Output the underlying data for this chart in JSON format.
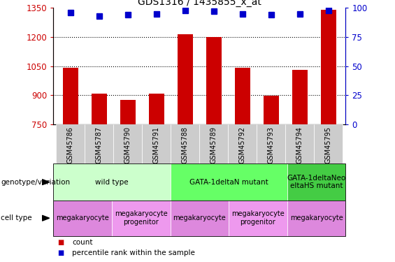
{
  "title": "GDS1316 / 1435855_x_at",
  "samples": [
    "GSM45786",
    "GSM45787",
    "GSM45790",
    "GSM45791",
    "GSM45788",
    "GSM45789",
    "GSM45792",
    "GSM45793",
    "GSM45794",
    "GSM45795"
  ],
  "counts": [
    1040,
    910,
    878,
    908,
    1215,
    1200,
    1040,
    898,
    1030,
    1340
  ],
  "percentiles": [
    96,
    93,
    94,
    95,
    98,
    97,
    95,
    94,
    95,
    98
  ],
  "ylim_left": [
    750,
    1350
  ],
  "ylim_right": [
    0,
    100
  ],
  "yticks_left": [
    750,
    900,
    1050,
    1200,
    1350
  ],
  "yticks_right": [
    0,
    25,
    50,
    75,
    100
  ],
  "bar_color": "#cc0000",
  "dot_color": "#0000cc",
  "plot_bg_color": "#ffffff",
  "grid_color": "#000000",
  "xticklabel_bg": "#cccccc",
  "left_tick_color": "#cc0000",
  "right_tick_color": "#0000cc",
  "genotype_groups": [
    {
      "label": "wild type",
      "start": 0,
      "end": 3,
      "color": "#ccffcc"
    },
    {
      "label": "GATA-1deltaN mutant",
      "start": 4,
      "end": 7,
      "color": "#66ff66"
    },
    {
      "label": "GATA-1deltaNeo\neltaHS mutant",
      "start": 8,
      "end": 9,
      "color": "#44cc44"
    }
  ],
  "cell_type_groups": [
    {
      "label": "megakaryocyte",
      "start": 0,
      "end": 1,
      "color": "#dd88dd"
    },
    {
      "label": "megakaryocyte\nprogenitor",
      "start": 2,
      "end": 3,
      "color": "#ee99ee"
    },
    {
      "label": "megakaryocyte",
      "start": 4,
      "end": 5,
      "color": "#dd88dd"
    },
    {
      "label": "megakaryocyte\nprogenitor",
      "start": 6,
      "end": 7,
      "color": "#ee99ee"
    },
    {
      "label": "megakaryocyte",
      "start": 8,
      "end": 9,
      "color": "#dd88dd"
    }
  ],
  "geno_label": "genotype/variation",
  "cell_label": "cell type",
  "legend_count": "count",
  "legend_pct": "percentile rank within the sample"
}
